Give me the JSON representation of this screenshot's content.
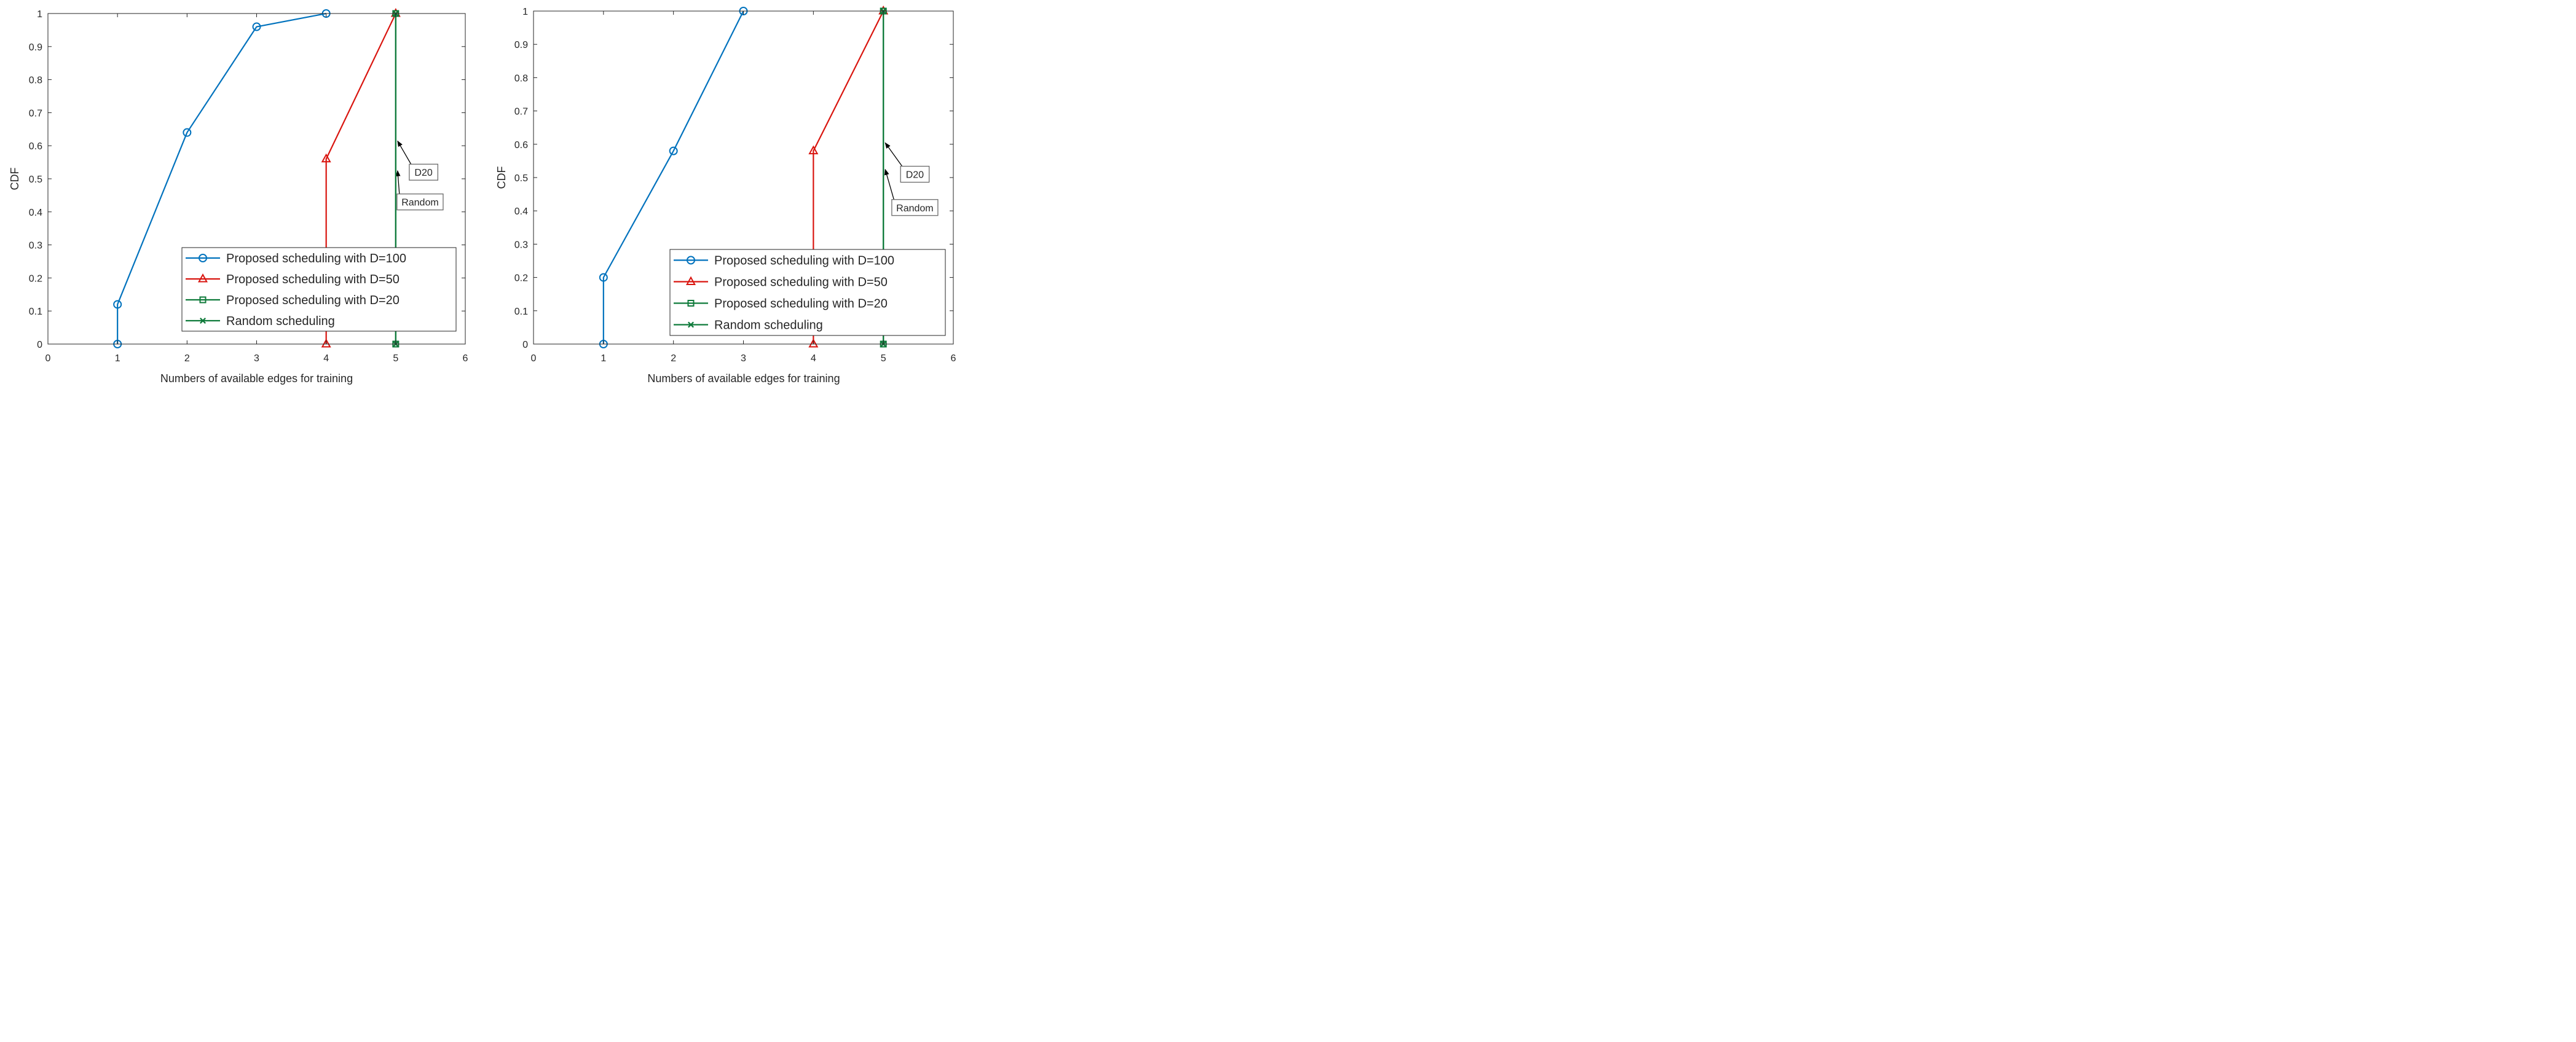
{
  "colors": {
    "d100": "#0072BD",
    "d50": "#D9150F",
    "d20": "#0E7A3A",
    "random": "#0E7A3A",
    "axis": "#262626",
    "arrow": "#000000",
    "boxEdge": "#6b6b6b"
  },
  "chart_data": [
    {
      "type": "line",
      "title": "",
      "xlabel": "Numbers of available edges for training",
      "ylabel": "CDF",
      "xlim": [
        0,
        6
      ],
      "ylim": [
        0,
        1
      ],
      "xticks": [
        "0",
        "1",
        "2",
        "3",
        "4",
        "5",
        "6"
      ],
      "yticks": [
        "0",
        "0.1",
        "0.2",
        "0.3",
        "0.4",
        "0.5",
        "0.6",
        "0.7",
        "0.8",
        "0.9",
        "1"
      ],
      "grid": false,
      "legend_location": "bottom-right",
      "series": [
        {
          "key": "d100",
          "name": "Proposed scheduling with D=100",
          "marker": "circle",
          "x": [
            1,
            1,
            2,
            3,
            4
          ],
          "y": [
            0,
            0.12,
            0.64,
            0.96,
            1.0
          ]
        },
        {
          "key": "d50",
          "name": "Proposed scheduling with D=50",
          "marker": "triangle",
          "x": [
            4,
            4,
            5
          ],
          "y": [
            0,
            0.56,
            1.0
          ]
        },
        {
          "key": "d20",
          "name": "Proposed scheduling with D=20",
          "marker": "square",
          "x": [
            5,
            5
          ],
          "y": [
            0,
            1.0
          ]
        },
        {
          "key": "random",
          "name": "Random scheduling",
          "marker": "x",
          "x": [
            5,
            5
          ],
          "y": [
            0,
            1.0
          ]
        }
      ],
      "annotations": [
        {
          "text": "D20",
          "point": [
            5,
            0.62
          ],
          "box_at": [
            5.4,
            0.52
          ]
        },
        {
          "text": "Random",
          "point": [
            5,
            0.53
          ],
          "box_at": [
            5.35,
            0.43
          ]
        }
      ]
    },
    {
      "type": "line",
      "title": "",
      "xlabel": "Numbers of available edges for training",
      "ylabel": "CDF",
      "xlim": [
        0,
        6
      ],
      "ylim": [
        0,
        1
      ],
      "xticks": [
        "0",
        "1",
        "2",
        "3",
        "4",
        "5",
        "6"
      ],
      "yticks": [
        "0",
        "0.1",
        "0.2",
        "0.3",
        "0.4",
        "0.5",
        "0.6",
        "0.7",
        "0.8",
        "0.9",
        "1"
      ],
      "grid": false,
      "legend_location": "bottom-right",
      "series": [
        {
          "key": "d100",
          "name": "Proposed scheduling with D=100",
          "marker": "circle",
          "x": [
            1,
            1,
            2,
            3
          ],
          "y": [
            0,
            0.2,
            0.58,
            1.0
          ]
        },
        {
          "key": "d50",
          "name": "Proposed scheduling with D=50",
          "marker": "triangle",
          "x": [
            4,
            4,
            5
          ],
          "y": [
            0,
            0.58,
            1.0
          ]
        },
        {
          "key": "d20",
          "name": "Proposed scheduling with D=20",
          "marker": "square",
          "x": [
            5,
            5
          ],
          "y": [
            0,
            1.0
          ]
        },
        {
          "key": "random",
          "name": "Random scheduling",
          "marker": "x",
          "x": [
            5,
            5
          ],
          "y": [
            0,
            1.0
          ]
        }
      ],
      "annotations": [
        {
          "text": "D20",
          "point": [
            5,
            0.61
          ],
          "box_at": [
            5.45,
            0.51
          ]
        },
        {
          "text": "Random",
          "point": [
            5,
            0.53
          ],
          "box_at": [
            5.45,
            0.41
          ]
        }
      ]
    }
  ]
}
